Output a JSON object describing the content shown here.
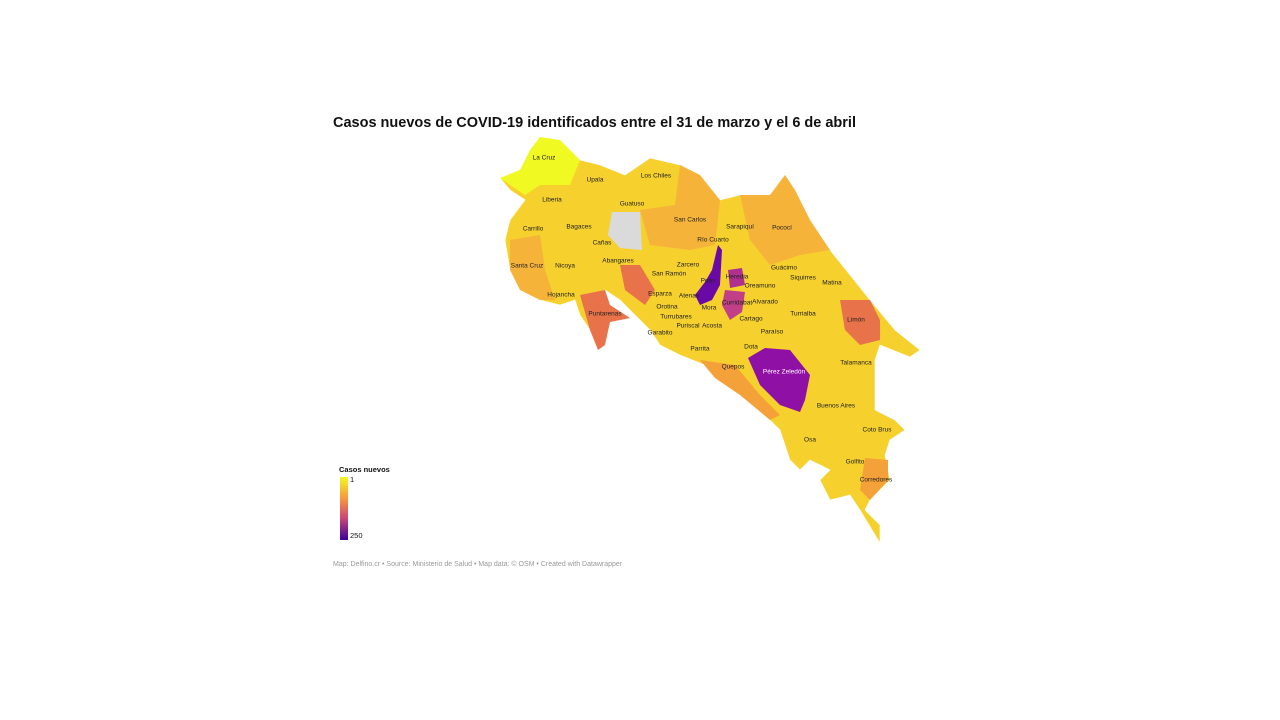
{
  "title": "Casos nuevos de COVID-19 identificados entre el 31 de marzo y el 6 de abril",
  "legend": {
    "title": "Casos nuevos",
    "min": 1,
    "max": 250
  },
  "cantons": [
    "La Cruz",
    "Upala",
    "Los Chiles",
    "Liberia",
    "Guatuso",
    "San Carlos",
    "Sarapiquí",
    "Pococí",
    "Carrillo",
    "Bagaces",
    "Cañas",
    "Río Cuarto",
    "Abangares",
    "Santa Cruz",
    "Nicoya",
    "Zarcero",
    "San Ramón",
    "Heredia",
    "Guácimo",
    "Siquirres",
    "Oreamuno",
    "Matina",
    "Hojancha",
    "Esparza",
    "Atenas",
    "Poás",
    "Alvarado",
    "Curridabat",
    "Orotina",
    "Mora",
    "Puntarenas",
    "Turrialba",
    "Limón",
    "Turrubares",
    "Cartago",
    "Puriscal",
    "Acosta",
    "Garabito",
    "Paraíso",
    "Dota",
    "Parrita",
    "Talamanca",
    "Quepos",
    "Pérez Zeledón",
    "Buenos Aires",
    "Coto Brus",
    "Osa",
    "Golfito",
    "Corredores"
  ],
  "footer": "Map: Delfino.cr • Source: Ministerio de Salud • Map data: © OSM • Created with Datawrapper"
}
